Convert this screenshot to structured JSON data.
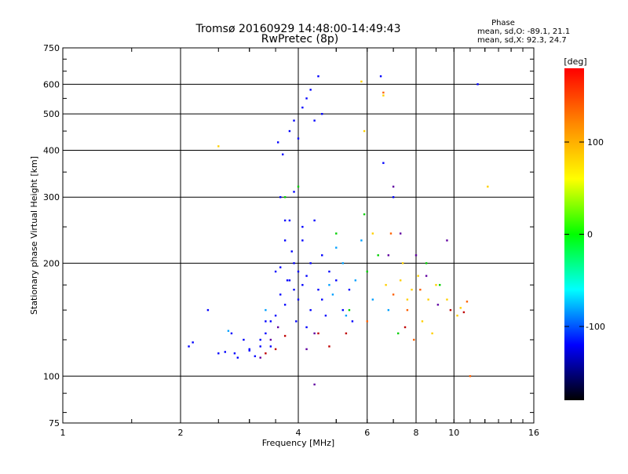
{
  "chart_data": {
    "type": "scatter",
    "title": "Tromsø 20160929 14:48:00-14:49:43",
    "subtitle": "RwPretec (8p)",
    "xlabel": "Frequency [MHz]",
    "ylabel": "Stationary phase Virtual Height [km]",
    "x_scale": "log",
    "y_scale": "log",
    "xlim": [
      1,
      16
    ],
    "ylim": [
      75,
      750
    ],
    "x_ticks": [
      1,
      2,
      4,
      6,
      8,
      10,
      16
    ],
    "x_tick_labels": [
      "1",
      "2",
      "4",
      "6",
      "8",
      "10",
      "16"
    ],
    "y_ticks": [
      75,
      100,
      200,
      300,
      400,
      500,
      600,
      750
    ],
    "y_tick_labels": [
      "75",
      "100",
      "200",
      "300",
      "400",
      "500",
      "600",
      "750"
    ],
    "stats": {
      "header": "Phase",
      "line_o": "mean, sd,O: -89.1, 21.1",
      "line_x": "mean, sd,X:  92.3, 24.7"
    },
    "colorbar": {
      "label": "[deg]",
      "range": [
        -180,
        180
      ],
      "ticks": [
        100,
        0,
        -100
      ],
      "tick_labels": [
        "100",
        "0",
        "-100"
      ],
      "colors": [
        "#ff0000",
        "#ff8800",
        "#ffff00",
        "#00ff00",
        "#00ffff",
        "#0000ff",
        "#000000"
      ]
    },
    "series": [
      {
        "color": "#0000ff",
        "points": [
          [
            2.1,
            120
          ],
          [
            2.15,
            123
          ],
          [
            2.35,
            150
          ],
          [
            2.5,
            115
          ],
          [
            2.6,
            116
          ],
          [
            2.7,
            130
          ],
          [
            2.8,
            112
          ],
          [
            2.9,
            125
          ],
          [
            3.0,
            118
          ],
          [
            3.1,
            113
          ],
          [
            3.2,
            120
          ],
          [
            3.3,
            130
          ],
          [
            3.4,
            140
          ],
          [
            3.5,
            145
          ],
          [
            3.6,
            165
          ],
          [
            3.7,
            155
          ],
          [
            3.8,
            180
          ],
          [
            3.9,
            170
          ],
          [
            4.0,
            160
          ],
          [
            4.1,
            175
          ],
          [
            4.2,
            185
          ],
          [
            4.3,
            150
          ],
          [
            4.5,
            170
          ],
          [
            3.6,
            195
          ],
          [
            3.75,
            180
          ],
          [
            3.9,
            200
          ],
          [
            4.0,
            190
          ],
          [
            3.8,
            260
          ],
          [
            4.1,
            250
          ],
          [
            3.6,
            300
          ],
          [
            3.7,
            260
          ],
          [
            3.9,
            310
          ],
          [
            3.55,
            420
          ],
          [
            3.65,
            390
          ],
          [
            3.8,
            450
          ],
          [
            3.9,
            480
          ],
          [
            4.0,
            430
          ],
          [
            4.1,
            520
          ],
          [
            4.2,
            550
          ],
          [
            4.4,
            480
          ],
          [
            4.3,
            580
          ],
          [
            4.6,
            500
          ],
          [
            4.5,
            630
          ],
          [
            3.5,
            190
          ],
          [
            3.7,
            230
          ],
          [
            4.1,
            230
          ],
          [
            4.4,
            260
          ],
          [
            4.6,
            210
          ],
          [
            4.8,
            190
          ],
          [
            5.0,
            180
          ],
          [
            5.2,
            150
          ],
          [
            5.5,
            140
          ],
          [
            4.7,
            145
          ],
          [
            3.3,
            140
          ],
          [
            3.2,
            125
          ],
          [
            4.2,
            135
          ],
          [
            4.6,
            160
          ],
          [
            5.4,
            170
          ],
          [
            6.5,
            630
          ],
          [
            6.6,
            370
          ],
          [
            7.0,
            300
          ],
          [
            11.5,
            600
          ],
          [
            3.4,
            120
          ],
          [
            3.0,
            117
          ],
          [
            2.75,
            115
          ],
          [
            3.95,
            140
          ],
          [
            4.3,
            200
          ],
          [
            3.85,
            215
          ]
        ]
      },
      {
        "color": "#00a0ff",
        "points": [
          [
            2.65,
            132
          ],
          [
            3.3,
            150
          ],
          [
            4.8,
            175
          ],
          [
            5.2,
            200
          ],
          [
            5.0,
            220
          ],
          [
            5.6,
            180
          ],
          [
            6.2,
            160
          ],
          [
            5.8,
            230
          ],
          [
            4.9,
            165
          ],
          [
            5.3,
            145
          ],
          [
            6.8,
            150
          ]
        ]
      },
      {
        "color": "#00d000",
        "points": [
          [
            3.7,
            300
          ],
          [
            4.0,
            320
          ],
          [
            5.9,
            270
          ],
          [
            5.4,
            150
          ],
          [
            7.2,
            130
          ],
          [
            6.4,
            210
          ],
          [
            8.5,
            200
          ],
          [
            9.2,
            175
          ],
          [
            5.0,
            240
          ],
          [
            6.0,
            190
          ]
        ]
      },
      {
        "color": "#ffd000",
        "points": [
          [
            2.5,
            410
          ],
          [
            5.8,
            610
          ],
          [
            6.6,
            560
          ],
          [
            7.3,
            180
          ],
          [
            7.8,
            170
          ],
          [
            8.1,
            185
          ],
          [
            8.6,
            160
          ],
          [
            9.0,
            175
          ],
          [
            9.6,
            160
          ],
          [
            10.4,
            152
          ],
          [
            10.2,
            145
          ],
          [
            6.7,
            175
          ],
          [
            7.6,
            160
          ],
          [
            8.3,
            140
          ],
          [
            6.2,
            240
          ],
          [
            5.9,
            450
          ],
          [
            12.2,
            320
          ],
          [
            8.8,
            130
          ],
          [
            7.4,
            200
          ]
        ]
      },
      {
        "color": "#ff6000",
        "points": [
          [
            6.6,
            570
          ],
          [
            7.0,
            165
          ],
          [
            7.6,
            150
          ],
          [
            8.2,
            170
          ],
          [
            6.9,
            240
          ],
          [
            10.8,
            158
          ],
          [
            7.9,
            125
          ],
          [
            6.0,
            140
          ],
          [
            11.0,
            100
          ]
        ]
      },
      {
        "color": "#c00000",
        "points": [
          [
            3.3,
            115
          ],
          [
            3.5,
            118
          ],
          [
            3.7,
            128
          ],
          [
            4.5,
            130
          ],
          [
            5.3,
            130
          ],
          [
            7.5,
            135
          ],
          [
            9.8,
            150
          ],
          [
            10.6,
            148
          ],
          [
            4.8,
            120
          ]
        ]
      },
      {
        "color": "#6000a0",
        "points": [
          [
            3.2,
            112
          ],
          [
            3.4,
            125
          ],
          [
            3.55,
            135
          ],
          [
            4.2,
            118
          ],
          [
            4.4,
            130
          ],
          [
            6.8,
            210
          ],
          [
            7.3,
            240
          ],
          [
            8.0,
            210
          ],
          [
            7.0,
            320
          ],
          [
            8.5,
            185
          ],
          [
            9.1,
            155
          ],
          [
            9.6,
            230
          ],
          [
            4.4,
            95
          ]
        ]
      }
    ]
  }
}
